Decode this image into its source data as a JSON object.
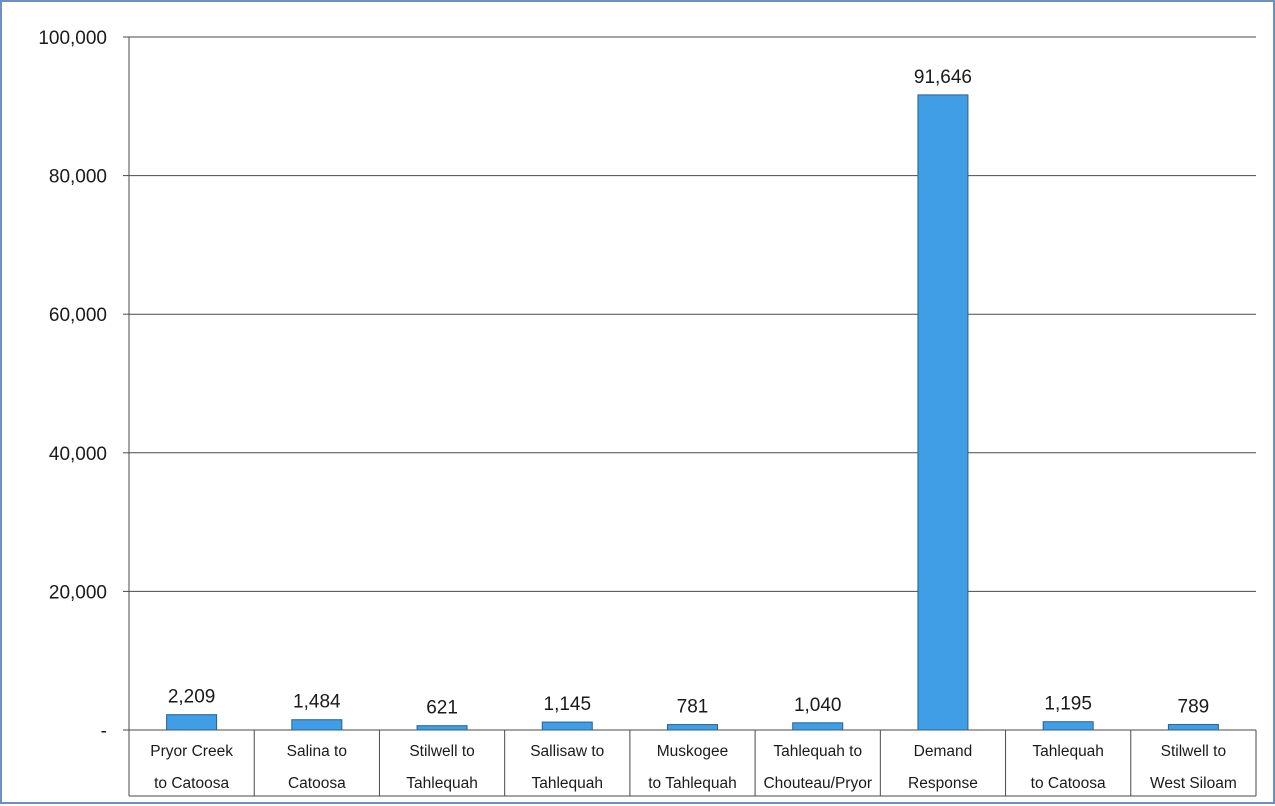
{
  "chart_data": {
    "type": "bar",
    "title": "",
    "xlabel": "",
    "ylabel": "",
    "ylim": [
      0,
      100000
    ],
    "yticks": [
      0,
      20000,
      40000,
      60000,
      80000,
      100000
    ],
    "ytick_labels": [
      "-",
      "20,000",
      "40,000",
      "60,000",
      "80,000",
      "100,000"
    ],
    "categories": [
      [
        "Pryor Creek",
        "to Catoosa"
      ],
      [
        "Salina to",
        "Catoosa"
      ],
      [
        "Stilwell to",
        "Tahlequah"
      ],
      [
        "Sallisaw to",
        "Tahlequah"
      ],
      [
        "Muskogee",
        "to Tahlequah"
      ],
      [
        "Tahlequah to",
        "Chouteau/Pryor"
      ],
      [
        "Demand",
        "Response"
      ],
      [
        "Tahlequah",
        "to Catoosa"
      ],
      [
        "Stilwell to",
        "West Siloam"
      ]
    ],
    "values": [
      2209,
      1484,
      621,
      1145,
      781,
      1040,
      91646,
      1195,
      789
    ],
    "data_labels": [
      "2,209",
      "1,484",
      "621",
      "1,145",
      "781",
      "1,040",
      "91,646",
      "1,195",
      "789"
    ],
    "grid": true,
    "legend": "none",
    "bar_color": "#3f9ee6"
  }
}
